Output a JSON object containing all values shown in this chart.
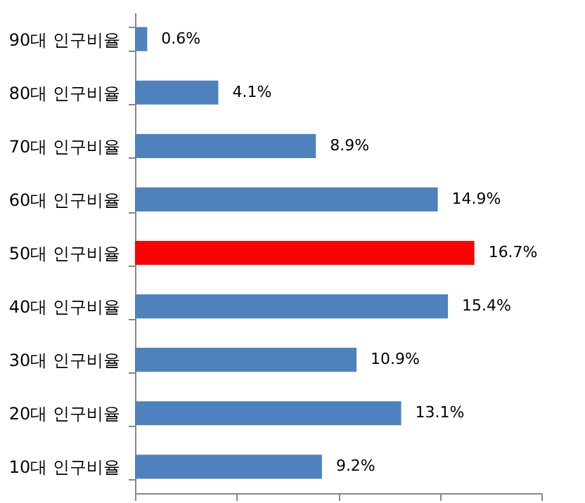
{
  "chart_data": {
    "type": "bar",
    "orientation": "horizontal",
    "categories": [
      "90대 인구비율",
      "80대 인구비율",
      "70대 인구비율",
      "60대 인구비율",
      "50대 인구비율",
      "40대 인구비율",
      "30대 인구비율",
      "20대 인구비율",
      "10대 인구비율"
    ],
    "values": [
      0.6,
      4.1,
      8.9,
      14.9,
      16.7,
      15.4,
      10.9,
      13.1,
      9.2
    ],
    "value_labels": [
      "0.6%",
      "4.1%",
      "8.9%",
      "14.9%",
      "16.7%",
      "15.4%",
      "10.9%",
      "13.1%",
      "9.2%"
    ],
    "colors": [
      "#4f81bd",
      "#4f81bd",
      "#4f81bd",
      "#4f81bd",
      "#ff0000",
      "#4f81bd",
      "#4f81bd",
      "#4f81bd",
      "#4f81bd"
    ],
    "xlim": [
      0,
      20
    ],
    "xticks": [
      {
        "value": 0,
        "label": null
      },
      {
        "value": 5,
        "label": null
      },
      {
        "value": 10,
        "label": null
      },
      {
        "value": 15,
        "label": null
      },
      {
        "value": 20,
        "label": null
      }
    ],
    "tick_labels": "y",
    "grid": false
  }
}
